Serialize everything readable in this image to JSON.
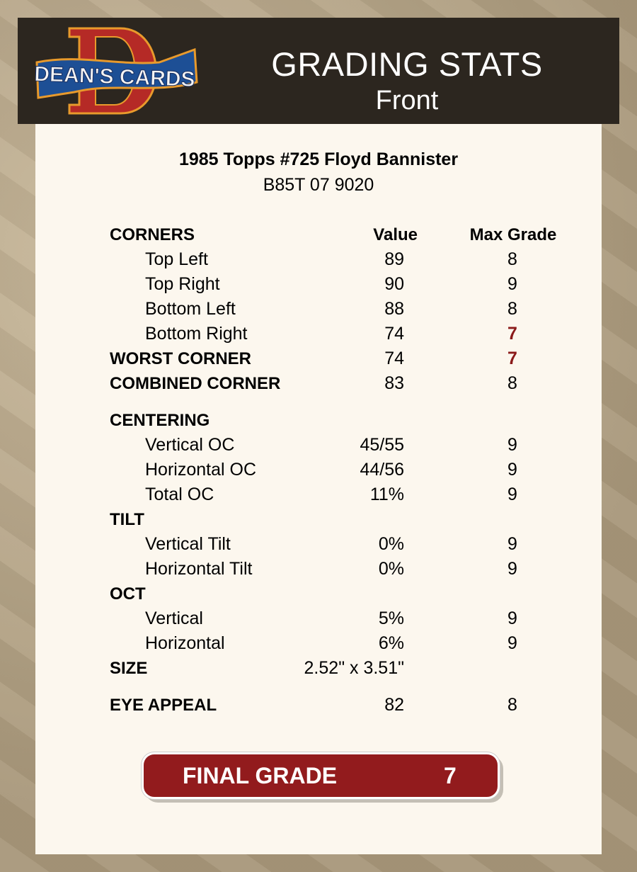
{
  "header": {
    "logo_text": "DEAN'S CARDS",
    "title": "GRADING STATS",
    "subtitle": "Front"
  },
  "card": {
    "name": "1985 Topps #725 Floyd Bannister",
    "cert": "B85T 07 9020"
  },
  "colors": {
    "header_bg": "#2c261f",
    "accent_red": "#921b1d",
    "panel_bg": "#fcf7ee"
  },
  "rows": [
    {
      "label": "CORNERS",
      "value": "Value",
      "max": "Max Grade",
      "type": "hdr"
    },
    {
      "label": "Top Left",
      "value": "89",
      "max": "8",
      "type": "sub"
    },
    {
      "label": "Top Right",
      "value": "90",
      "max": "9",
      "type": "sub"
    },
    {
      "label": "Bottom Left",
      "value": "88",
      "max": "8",
      "type": "sub"
    },
    {
      "label": "Bottom Right",
      "value": "74",
      "max": "7",
      "type": "sub",
      "highlight": true
    },
    {
      "label": "WORST CORNER",
      "value": "74",
      "max": "7",
      "type": "bold",
      "highlight": true
    },
    {
      "label": "COMBINED CORNER",
      "value": "83",
      "max": "8",
      "type": "bold"
    },
    {
      "label": "CENTERING",
      "value": "",
      "max": "",
      "type": "bold"
    },
    {
      "label": "Vertical OC",
      "value": "45/55",
      "max": "9",
      "type": "sub"
    },
    {
      "label": "Horizontal OC",
      "value": "44/56",
      "max": "9",
      "type": "sub"
    },
    {
      "label": "Total OC",
      "value": "11%",
      "max": "9",
      "type": "sub"
    },
    {
      "label": "TILT",
      "value": "",
      "max": "",
      "type": "bold"
    },
    {
      "label": "Vertical Tilt",
      "value": "0%",
      "max": "9",
      "type": "sub"
    },
    {
      "label": "Horizontal Tilt",
      "value": "0%",
      "max": "9",
      "type": "sub"
    },
    {
      "label": "OCT",
      "value": "",
      "max": "",
      "type": "bold"
    },
    {
      "label": "Vertical",
      "value": "5%",
      "max": "9",
      "type": "sub"
    },
    {
      "label": "Horizontal",
      "value": "6%",
      "max": "9",
      "type": "sub"
    },
    {
      "label": "SIZE",
      "value": "2.52\" x 3.51\"",
      "max": "",
      "type": "bold"
    },
    {
      "label": "EYE APPEAL",
      "value": "82",
      "max": "8",
      "type": "bold"
    }
  ],
  "final": {
    "label": "FINAL GRADE",
    "value": "7"
  }
}
